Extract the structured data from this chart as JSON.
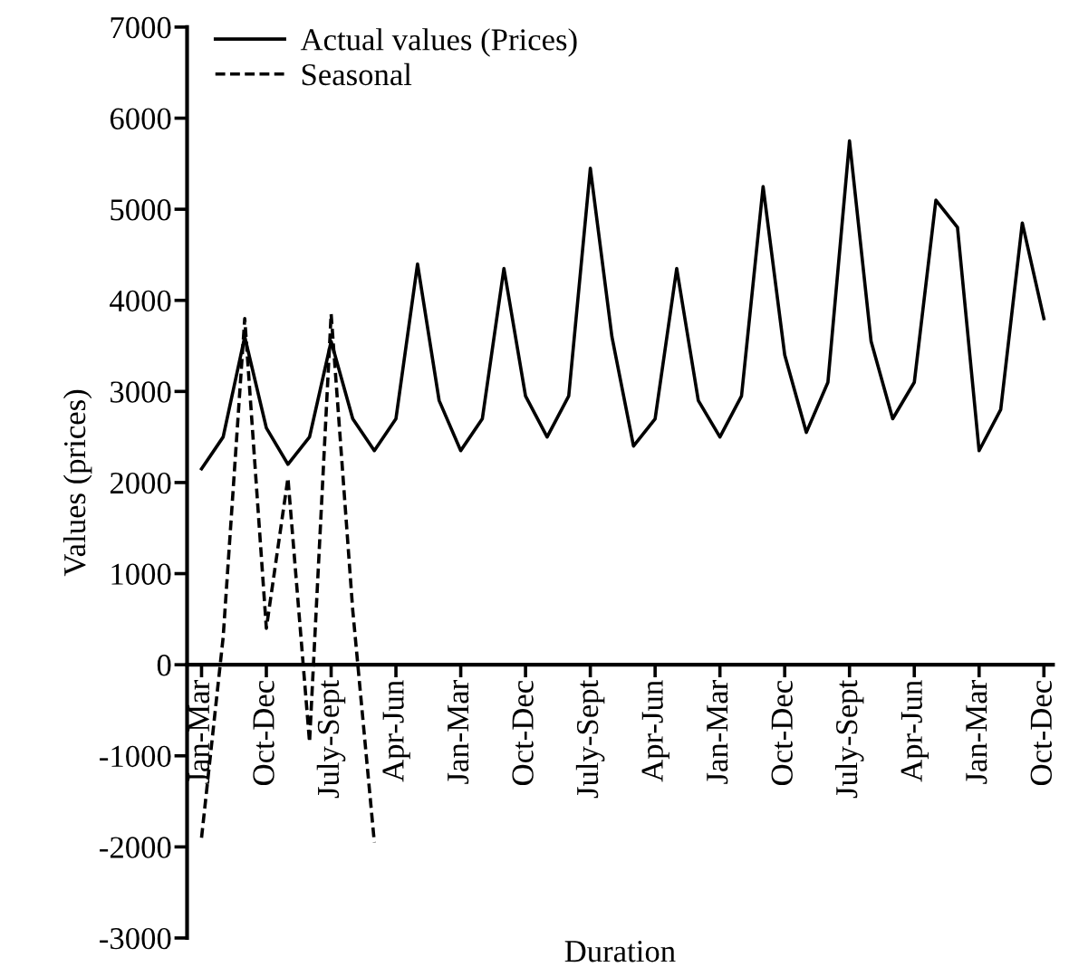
{
  "chart_data": {
    "type": "line",
    "xlabel": "Duration",
    "ylabel": "Values (prices)",
    "categories": [
      "Jan-Mar",
      null,
      null,
      "Oct-Dec",
      null,
      null,
      "July-Sept",
      null,
      null,
      "Apr-Jun",
      null,
      null,
      "Jan-Mar",
      null,
      null,
      "Oct-Dec",
      null,
      null,
      "July-Sept",
      null,
      null,
      "Apr-Jun",
      null,
      null,
      "Jan-Mar",
      null,
      null,
      "Oct-Dec",
      null,
      null,
      "July-Sept",
      null,
      null,
      "Apr-Jun",
      null,
      null,
      "Jan-Mar",
      null,
      null,
      "Oct-Dec"
    ],
    "series": [
      {
        "name": "Actual values (Prices)",
        "color": "#000000",
        "line_style": "solid",
        "values": [
          2150,
          2500,
          3600,
          2600,
          2200,
          2500,
          3550,
          2700,
          2350,
          2700,
          4400,
          2900,
          2350,
          2700,
          4350,
          2950,
          2500,
          2950,
          5450,
          3600,
          2400,
          2700,
          4350,
          2900,
          2500,
          2950,
          5250,
          3400,
          2550,
          3100,
          5750,
          3550,
          2700,
          3100,
          5100,
          4800,
          2350,
          2800,
          4850,
          3800
        ]
      },
      {
        "name": "Seasonal",
        "color": "#000000",
        "line_style": "dashed",
        "values": [
          -1900,
          300,
          3800,
          400,
          2050,
          -850,
          3850,
          600,
          -1950,
          null,
          null,
          null,
          null,
          null,
          null,
          null,
          null,
          null,
          null,
          null,
          null,
          null,
          null,
          null,
          null,
          null,
          null,
          null,
          null,
          null,
          null,
          null,
          null,
          null,
          null,
          null,
          null,
          null,
          null,
          null
        ]
      }
    ],
    "ylim": [
      -3000,
      7000
    ],
    "yticks": [
      -3000,
      -2000,
      -1000,
      0,
      1000,
      2000,
      3000,
      4000,
      5000,
      6000,
      7000
    ],
    "legend": "top left",
    "marker": "none"
  }
}
